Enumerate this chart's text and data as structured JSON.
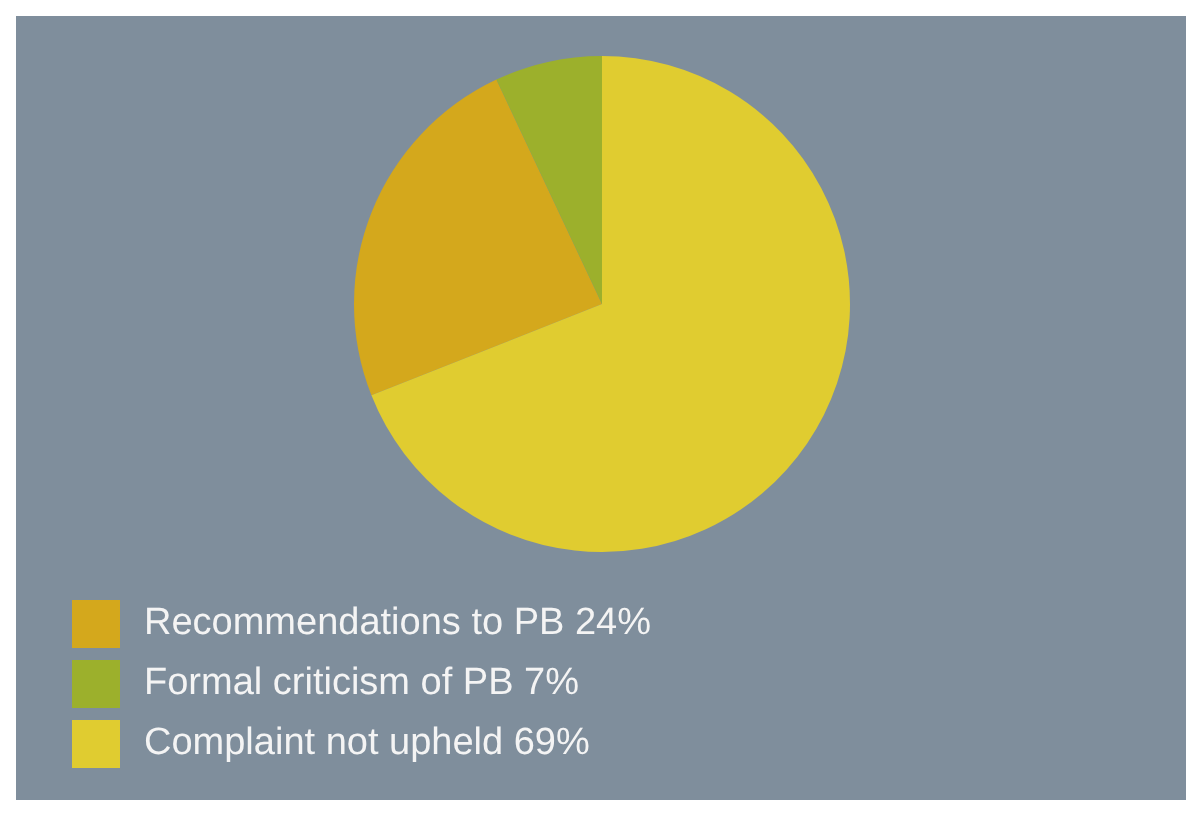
{
  "chart_data": {
    "type": "pie",
    "categories": [
      "Recommendations to PB 24%",
      "Formal criticism of PB 7%",
      "Complaint not upheld 69%"
    ],
    "values": [
      24,
      7,
      69
    ],
    "colors": [
      "#d4a81c",
      "#9cb02c",
      "#e0cc30"
    ],
    "legend": "bottom left"
  }
}
